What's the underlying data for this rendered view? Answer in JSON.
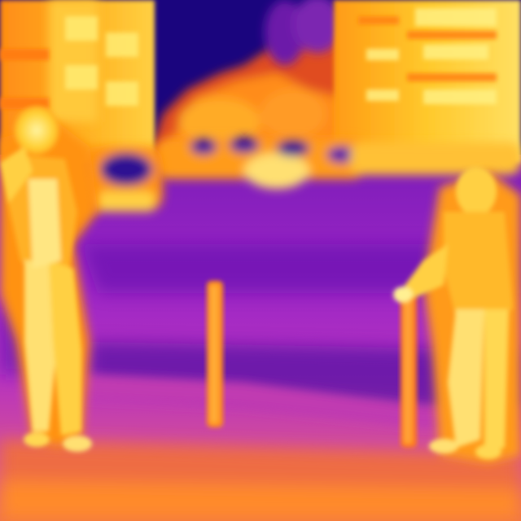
{
  "image": {
    "kind": "thermal-infrared-photo",
    "palette": [
      "#14007a",
      "#5a10b8",
      "#a020c8",
      "#d83aa8",
      "#f06a40",
      "#ff9a10",
      "#ffc820",
      "#fff080"
    ],
    "subjects": [
      "person-left",
      "person-right",
      "bollard-center",
      "bollard-right",
      "parked-cars",
      "buildings",
      "trees",
      "night-sky"
    ]
  }
}
